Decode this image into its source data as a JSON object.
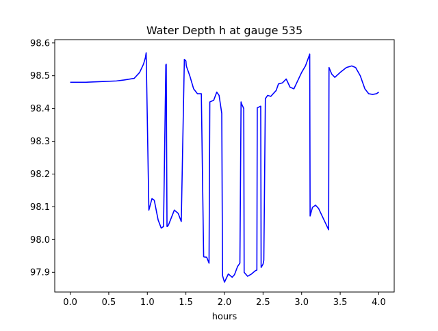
{
  "chart_data": {
    "type": "line",
    "title": "Water Depth h at gauge 535",
    "xlabel": "hours",
    "ylabel": "",
    "xlim": [
      -0.2,
      4.2
    ],
    "ylim": [
      97.84,
      98.61
    ],
    "xticks": [
      0.0,
      0.5,
      1.0,
      1.5,
      2.0,
      2.5,
      3.0,
      3.5,
      4.0
    ],
    "xtick_labels": [
      "0.0",
      "0.5",
      "1.0",
      "1.5",
      "2.0",
      "2.5",
      "3.0",
      "3.5",
      "4.0"
    ],
    "yticks": [
      97.9,
      98.0,
      98.1,
      98.2,
      98.3,
      98.4,
      98.5,
      98.6
    ],
    "ytick_labels": [
      "97.9",
      "98.0",
      "98.1",
      "98.2",
      "98.3",
      "98.4",
      "98.5",
      "98.6"
    ],
    "grid": false,
    "series": [
      {
        "color": "#0000ff",
        "x": [
          0.0,
          0.2,
          0.4,
          0.6,
          0.7,
          0.83,
          0.9,
          0.95,
          0.975,
          0.985,
          1.02,
          1.06,
          1.09,
          1.14,
          1.18,
          1.21,
          1.24,
          1.245,
          1.255,
          1.26,
          1.275,
          1.3,
          1.35,
          1.4,
          1.44,
          1.48,
          1.5,
          1.505,
          1.55,
          1.6,
          1.65,
          1.7,
          1.73,
          1.735,
          1.77,
          1.8,
          1.81,
          1.86,
          1.9,
          1.93,
          1.965,
          1.975,
          2.0,
          2.05,
          2.1,
          2.13,
          2.17,
          2.2,
          2.215,
          2.22,
          2.25,
          2.255,
          2.3,
          2.35,
          2.4,
          2.42,
          2.425,
          2.47,
          2.475,
          2.5,
          2.51,
          2.53,
          2.56,
          2.6,
          2.67,
          2.7,
          2.75,
          2.8,
          2.85,
          2.9,
          3.0,
          3.05,
          3.105,
          3.11,
          3.14,
          3.18,
          3.22,
          3.27,
          3.35,
          3.355,
          3.39,
          3.43,
          3.5,
          3.58,
          3.65,
          3.7,
          3.76,
          3.82,
          3.87,
          3.92,
          3.97,
          4.0
        ],
        "y": [
          98.48,
          98.48,
          98.482,
          98.484,
          98.487,
          98.492,
          98.51,
          98.535,
          98.555,
          98.57,
          98.09,
          98.125,
          98.12,
          98.06,
          98.035,
          98.04,
          98.533,
          98.535,
          98.04,
          98.04,
          98.045,
          98.06,
          98.09,
          98.08,
          98.055,
          98.55,
          98.545,
          98.53,
          98.5,
          98.46,
          98.445,
          98.445,
          97.948,
          97.947,
          97.946,
          97.928,
          98.42,
          98.425,
          98.45,
          98.44,
          98.385,
          97.89,
          97.87,
          97.895,
          97.885,
          97.893,
          97.918,
          97.928,
          98.42,
          98.415,
          98.4,
          97.9,
          97.888,
          97.895,
          97.905,
          97.907,
          98.402,
          98.407,
          97.915,
          97.925,
          97.937,
          98.43,
          98.44,
          98.437,
          98.455,
          98.475,
          98.478,
          98.49,
          98.465,
          98.46,
          98.51,
          98.53,
          98.566,
          98.072,
          98.098,
          98.105,
          98.095,
          98.07,
          98.03,
          98.525,
          98.505,
          98.495,
          98.51,
          98.525,
          98.53,
          98.525,
          98.5,
          98.46,
          98.445,
          98.443,
          98.445,
          98.45
        ]
      }
    ]
  }
}
